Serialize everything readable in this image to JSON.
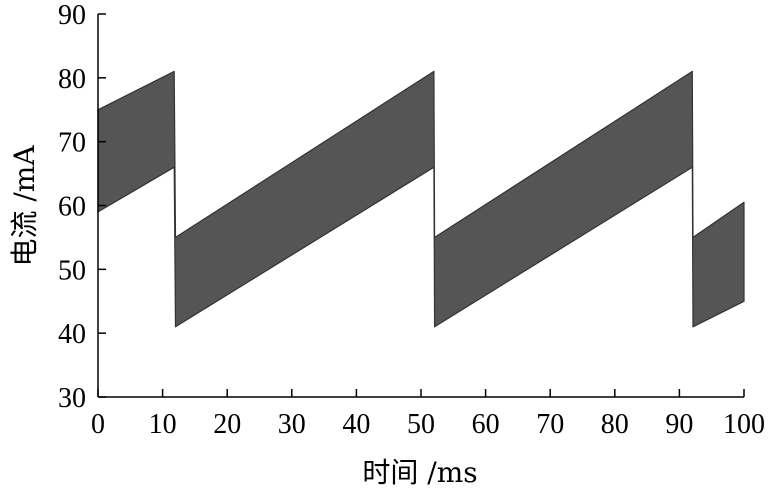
{
  "chart_data": {
    "type": "area",
    "title": "",
    "xlabel": "时间 /ms",
    "ylabel": "电流 /mA",
    "xlim": [
      0,
      100
    ],
    "ylim": [
      30,
      90
    ],
    "xticks": [
      0,
      10,
      20,
      30,
      40,
      50,
      60,
      70,
      80,
      90,
      100
    ],
    "yticks": [
      30,
      40,
      50,
      60,
      70,
      80,
      90
    ],
    "grid": false,
    "legend": "none",
    "band_color": "#555555",
    "series": [
      {
        "upper": {
          "x": [
            0,
            11.8,
            12,
            52,
            52.1,
            92,
            92.1,
            100
          ],
          "y": [
            75,
            81,
            55,
            81,
            55,
            81,
            55,
            60.5
          ]
        },
        "lower": {
          "x": [
            0,
            11.8,
            12,
            52,
            52.1,
            92,
            92.1,
            100
          ],
          "y": [
            59,
            66,
            41,
            66,
            41,
            66,
            41,
            45
          ]
        }
      }
    ]
  }
}
